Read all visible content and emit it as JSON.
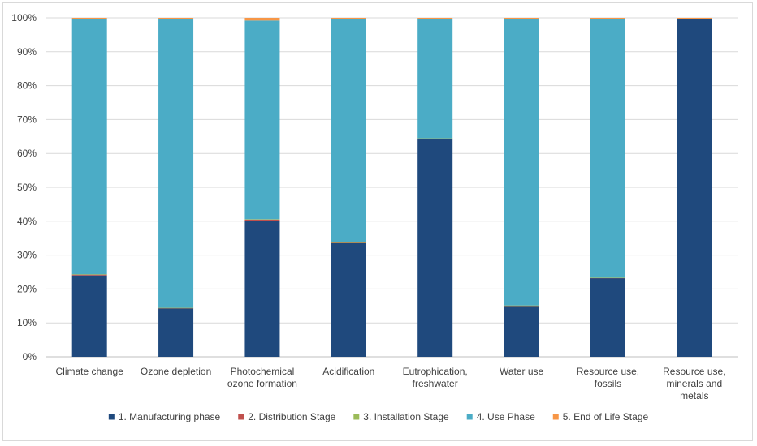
{
  "chart_data": {
    "type": "bar",
    "stacked": true,
    "percent": true,
    "categories": [
      [
        "Climate change"
      ],
      [
        "Ozone depletion"
      ],
      [
        "Photochemical",
        "ozone formation"
      ],
      [
        "Acidification"
      ],
      [
        "Eutrophication,",
        "freshwater"
      ],
      [
        "Water use"
      ],
      [
        "Resource use,",
        "fossils"
      ],
      [
        "Resource use,",
        "minerals and",
        "metals"
      ]
    ],
    "series": [
      {
        "name": "1. Manufacturing phase",
        "color": "#1f497d",
        "values": [
          24,
          14.3,
          40,
          33.5,
          64.3,
          15,
          23.2,
          99.6
        ]
      },
      {
        "name": "2. Distribution Stage",
        "color": "#c0504d",
        "values": [
          0.3,
          0.1,
          0.5,
          0.2,
          0.1,
          0.1,
          0.1,
          0.1
        ]
      },
      {
        "name": "3. Installation Stage",
        "color": "#9bbb59",
        "values": [
          0.05,
          0.05,
          0.1,
          0.05,
          0.05,
          0.05,
          0.05,
          0.05
        ]
      },
      {
        "name": "4. Use Phase",
        "color": "#4bacc6",
        "values": [
          75.2,
          85.1,
          58.6,
          66,
          35.1,
          84.6,
          76.3,
          0
        ]
      },
      {
        "name": "5. End of Life Stage",
        "color": "#f79646",
        "values": [
          0.45,
          0.45,
          0.8,
          0.25,
          0.45,
          0.25,
          0.35,
          0.25
        ]
      }
    ],
    "y_ticks": [
      "0%",
      "10%",
      "20%",
      "30%",
      "40%",
      "50%",
      "60%",
      "70%",
      "80%",
      "90%",
      "100%"
    ],
    "ylim": [
      0,
      100
    ],
    "grid": true,
    "legend_position": "bottom"
  }
}
